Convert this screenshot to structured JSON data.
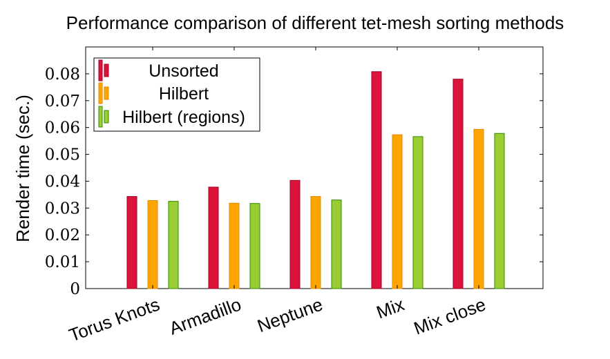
{
  "chart_data": {
    "type": "bar",
    "title": "Performance comparison of different tet-mesh sorting methods",
    "xlabel": "",
    "ylabel": "Render time (sec.)",
    "ylim": [
      0,
      0.09
    ],
    "yticks": [
      "0",
      "0.01",
      "0.02",
      "0.03",
      "0.04",
      "0.05",
      "0.06",
      "0.07",
      "0.08"
    ],
    "categories": [
      "Torus Knots",
      "Armadillo",
      "Neptune",
      "Mix",
      "Mix close"
    ],
    "series": [
      {
        "name": "Unsorted",
        "color": "#dc143c",
        "stroke": "#a00020",
        "values": [
          0.0343,
          0.0378,
          0.0403,
          0.0808,
          0.078
        ]
      },
      {
        "name": "Hilbert",
        "color": "#ffa500",
        "stroke": "#e08a00",
        "values": [
          0.0328,
          0.0318,
          0.0343,
          0.0573,
          0.0593
        ]
      },
      {
        "name": "Hilbert (regions)",
        "color": "#9acd32",
        "stroke": "#2e8b00",
        "values": [
          0.0325,
          0.0317,
          0.033,
          0.0566,
          0.0578
        ]
      }
    ],
    "legend_position": "top-left",
    "grid": false
  }
}
